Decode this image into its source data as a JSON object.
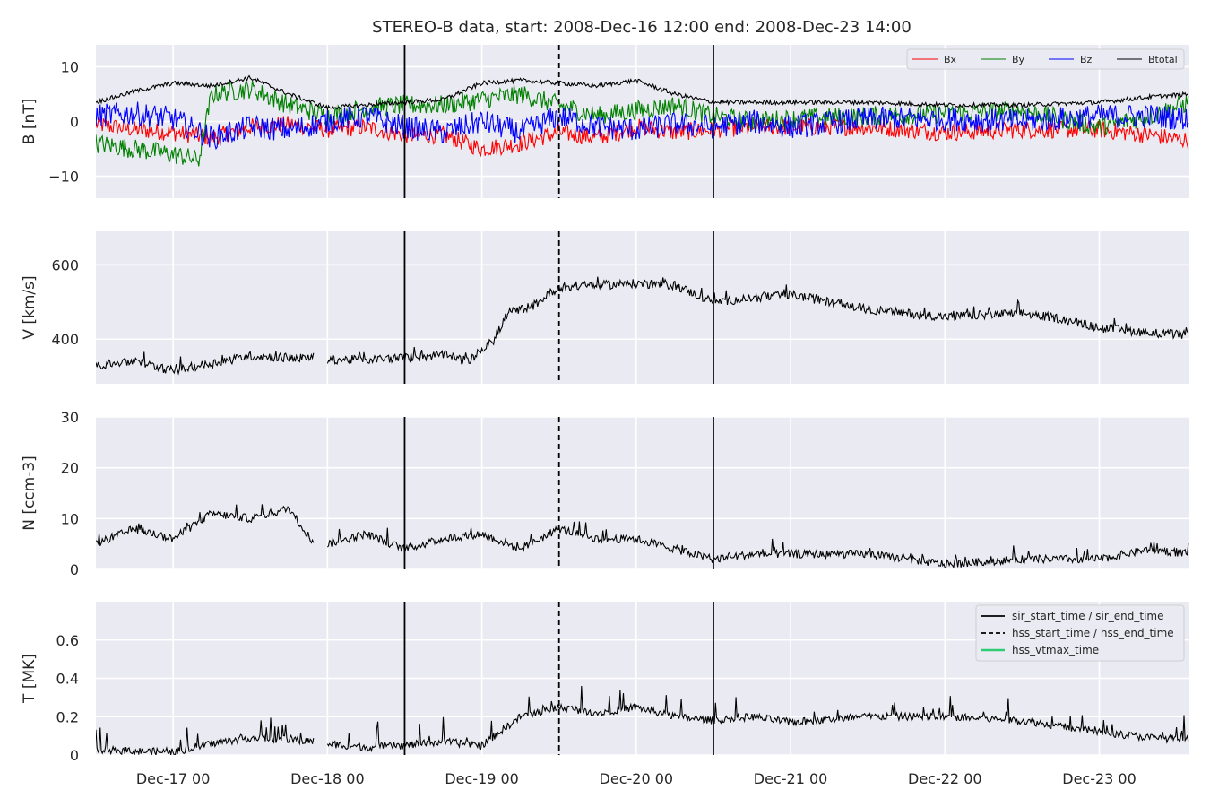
{
  "title": "STEREO-B data, start: 2008-Dec-16 12:00  end: 2008-Dec-23 14:00",
  "colors": {
    "background": "#eaeaf2",
    "grid": "#ffffff",
    "bx": "#ff0000",
    "by": "#008000",
    "bz": "#0000ff",
    "btotal": "#000000",
    "vtmax": "#2ecc71"
  },
  "x_axis": {
    "start": "2008-12-16 12:00",
    "end": "2008-12-23 14:00",
    "tick_dates": [
      "2008-12-17 00:00",
      "2008-12-18 00:00",
      "2008-12-19 00:00",
      "2008-12-20 00:00",
      "2008-12-21 00:00",
      "2008-12-22 00:00",
      "2008-12-23 00:00"
    ],
    "tick_labels": [
      "Dec-17 00",
      "Dec-18 00",
      "Dec-19 00",
      "Dec-20 00",
      "Dec-21 00",
      "Dec-22 00",
      "Dec-23 00"
    ]
  },
  "events": {
    "sir_start_time": "2008-12-18 12:00",
    "hss_start_time": "2008-12-19 12:00",
    "sir_end_time": "2008-12-20 12:00"
  },
  "chart_data": [
    {
      "type": "line",
      "ylabel": "B [nT]",
      "ylim": [
        -14,
        14
      ],
      "yticks": [
        -10,
        0,
        10
      ],
      "grid": true,
      "legend": "top-right",
      "series": [
        {
          "name": "Bx",
          "color": "#ff0000",
          "x": [
            "2008-12-16 12:00",
            "2008-12-16 18:00",
            "2008-12-17 00:00",
            "2008-12-17 06:00",
            "2008-12-17 12:00",
            "2008-12-17 18:00",
            "2008-12-18 00:00",
            "2008-12-18 06:00",
            "2008-12-18 12:00",
            "2008-12-18 18:00",
            "2008-12-19 00:00",
            "2008-12-19 06:00",
            "2008-12-19 12:00",
            "2008-12-19 18:00",
            "2008-12-20 00:00",
            "2008-12-20 06:00",
            "2008-12-20 12:00",
            "2008-12-20 18:00",
            "2008-12-21 00:00",
            "2008-12-21 12:00",
            "2008-12-22 00:00",
            "2008-12-22 12:00",
            "2008-12-23 00:00",
            "2008-12-23 08:00",
            "2008-12-23 14:00"
          ],
          "y": [
            -0.5,
            -1.5,
            -2,
            -3,
            -1,
            -0.5,
            -1.5,
            -1,
            -2.5,
            -2.5,
            -5,
            -4,
            -2,
            -3,
            -1,
            -2,
            -1.5,
            -1,
            -1,
            -1,
            -2,
            -1.5,
            -1.5,
            -2.5,
            -3.5
          ]
        },
        {
          "name": "By",
          "color": "#008000",
          "x": [
            "2008-12-16 12:00",
            "2008-12-16 18:00",
            "2008-12-17 00:00",
            "2008-12-17 04:00",
            "2008-12-17 06:00",
            "2008-12-17 12:00",
            "2008-12-17 18:00",
            "2008-12-18 00:00",
            "2008-12-18 06:00",
            "2008-12-18 12:00",
            "2008-12-18 18:00",
            "2008-12-19 00:00",
            "2008-12-19 06:00",
            "2008-12-19 12:00",
            "2008-12-19 18:00",
            "2008-12-20 00:00",
            "2008-12-20 06:00",
            "2008-12-20 12:00",
            "2008-12-20 18:00",
            "2008-12-21 00:00",
            "2008-12-21 12:00",
            "2008-12-22 00:00",
            "2008-12-22 12:00",
            "2008-12-23 00:00",
            "2008-12-23 08:00",
            "2008-12-23 14:00"
          ],
          "y": [
            -4,
            -5,
            -6,
            -7,
            5,
            6,
            3,
            1,
            2.5,
            3,
            3,
            4,
            5,
            3,
            1,
            2,
            3,
            1,
            0,
            0.5,
            1,
            1.5,
            2,
            -1,
            1,
            3.5
          ]
        },
        {
          "name": "Bz",
          "color": "#0000ff",
          "x": [
            "2008-12-16 12:00",
            "2008-12-16 18:00",
            "2008-12-17 00:00",
            "2008-12-17 06:00",
            "2008-12-17 12:00",
            "2008-12-17 18:00",
            "2008-12-18 00:00",
            "2008-12-18 06:00",
            "2008-12-18 12:00",
            "2008-12-18 18:00",
            "2008-12-19 00:00",
            "2008-12-19 06:00",
            "2008-12-19 12:00",
            "2008-12-19 18:00",
            "2008-12-20 00:00",
            "2008-12-20 06:00",
            "2008-12-20 12:00",
            "2008-12-20 18:00",
            "2008-12-21 00:00",
            "2008-12-21 12:00",
            "2008-12-22 00:00",
            "2008-12-22 12:00",
            "2008-12-23 00:00",
            "2008-12-23 08:00",
            "2008-12-23 14:00"
          ],
          "y": [
            1,
            1.5,
            0.5,
            -3,
            -1,
            -1.5,
            0,
            1,
            -1,
            -2,
            0,
            -2,
            1,
            -1,
            -1.5,
            -0.5,
            -1,
            0,
            -1,
            0.5,
            0.5,
            0,
            1,
            1,
            0.5
          ]
        },
        {
          "name": "Btotal",
          "color": "#000000",
          "x": [
            "2008-12-16 12:00",
            "2008-12-16 18:00",
            "2008-12-17 00:00",
            "2008-12-17 06:00",
            "2008-12-17 12:00",
            "2008-12-17 18:00",
            "2008-12-18 00:00",
            "2008-12-18 06:00",
            "2008-12-18 12:00",
            "2008-12-18 18:00",
            "2008-12-19 00:00",
            "2008-12-19 06:00",
            "2008-12-19 12:00",
            "2008-12-19 18:00",
            "2008-12-20 00:00",
            "2008-12-20 06:00",
            "2008-12-20 12:00",
            "2008-12-20 18:00",
            "2008-12-21 00:00",
            "2008-12-21 12:00",
            "2008-12-22 00:00",
            "2008-12-22 12:00",
            "2008-12-23 00:00",
            "2008-12-23 08:00",
            "2008-12-23 14:00"
          ],
          "y": [
            3.5,
            5.5,
            7,
            6.5,
            8,
            5,
            2.5,
            3,
            3.5,
            4,
            7,
            7.5,
            7,
            6.5,
            7.5,
            5,
            3.5,
            3.5,
            3.5,
            3.5,
            3,
            3,
            3.5,
            4.5,
            5
          ]
        }
      ]
    },
    {
      "type": "line",
      "ylabel": "V [km/s]",
      "ylim": [
        280,
        690
      ],
      "yticks": [
        400,
        600
      ],
      "grid": true,
      "series": [
        {
          "color": "#000000",
          "x": [
            "2008-12-16 12:00",
            "2008-12-16 18:00",
            "2008-12-17 00:00",
            "2008-12-17 06:00",
            "2008-12-17 12:00",
            "2008-12-17 18:00",
            "2008-12-17 22:00",
            null,
            "2008-12-18 00:00",
            "2008-12-18 06:00",
            "2008-12-18 12:00",
            "2008-12-18 18:00",
            "2008-12-18 22:00",
            "2008-12-19 02:00",
            "2008-12-19 04:00",
            "2008-12-19 08:00",
            "2008-12-19 12:00",
            "2008-12-19 18:00",
            "2008-12-20 00:00",
            "2008-12-20 06:00",
            "2008-12-20 12:00",
            "2008-12-20 18:00",
            "2008-12-21 00:00",
            "2008-12-21 06:00",
            "2008-12-21 12:00",
            "2008-12-21 18:00",
            "2008-12-22 00:00",
            "2008-12-22 06:00",
            "2008-12-22 12:00",
            "2008-12-22 18:00",
            "2008-12-23 00:00",
            "2008-12-23 06:00",
            "2008-12-23 14:00"
          ],
          "y": [
            330,
            340,
            315,
            335,
            355,
            350,
            348,
            null,
            345,
            345,
            350,
            358,
            340,
            400,
            470,
            490,
            540,
            545,
            550,
            545,
            500,
            510,
            520,
            500,
            480,
            470,
            460,
            465,
            470,
            455,
            430,
            420,
            410
          ]
        }
      ]
    },
    {
      "type": "line",
      "ylabel": "N [ccm-3]",
      "ylim": [
        0,
        30
      ],
      "yticks": [
        0,
        10,
        20,
        30
      ],
      "grid": true,
      "series": [
        {
          "color": "#000000",
          "x": [
            "2008-12-16 12:00",
            "2008-12-16 18:00",
            "2008-12-17 00:00",
            "2008-12-17 06:00",
            "2008-12-17 12:00",
            "2008-12-17 18:00",
            "2008-12-17 22:00",
            null,
            "2008-12-18 00:00",
            "2008-12-18 06:00",
            "2008-12-18 12:00",
            "2008-12-18 18:00",
            "2008-12-19 00:00",
            "2008-12-19 06:00",
            "2008-12-19 12:00",
            "2008-12-19 18:00",
            "2008-12-20 00:00",
            "2008-12-20 06:00",
            "2008-12-20 12:00",
            "2008-12-20 18:00",
            "2008-12-21 00:00",
            "2008-12-21 12:00",
            "2008-12-21 18:00",
            "2008-12-22 00:00",
            "2008-12-22 12:00",
            "2008-12-23 00:00",
            "2008-12-23 08:00",
            "2008-12-23 14:00"
          ],
          "y": [
            5,
            8,
            6,
            11,
            10,
            12,
            5,
            null,
            5,
            7,
            4,
            6,
            7,
            4,
            8,
            6,
            6,
            4,
            2,
            3,
            3,
            3,
            2,
            1,
            2,
            2,
            4,
            3
          ]
        }
      ]
    },
    {
      "type": "line",
      "ylabel": "T [MK]",
      "ylim": [
        0,
        0.8
      ],
      "yticks": [
        0.0,
        0.2,
        0.4,
        0.6
      ],
      "grid": true,
      "legend": "top-right",
      "series": [
        {
          "color": "#000000",
          "x": [
            "2008-12-16 12:00",
            "2008-12-16 18:00",
            "2008-12-17 00:00",
            "2008-12-17 06:00",
            "2008-12-17 12:00",
            "2008-12-17 18:00",
            "2008-12-17 22:00",
            null,
            "2008-12-18 00:00",
            "2008-12-18 06:00",
            "2008-12-18 12:00",
            "2008-12-18 18:00",
            "2008-12-19 00:00",
            "2008-12-19 06:00",
            "2008-12-19 12:00",
            "2008-12-19 18:00",
            "2008-12-20 00:00",
            "2008-12-20 06:00",
            "2008-12-20 12:00",
            "2008-12-20 18:00",
            "2008-12-21 00:00",
            "2008-12-21 12:00",
            "2008-12-22 00:00",
            "2008-12-22 12:00",
            "2008-12-23 00:00",
            "2008-12-23 08:00",
            "2008-12-23 14:00"
          ],
          "y": [
            0.03,
            0.02,
            0.015,
            0.06,
            0.09,
            0.08,
            0.07,
            null,
            0.06,
            0.04,
            0.05,
            0.07,
            0.05,
            0.2,
            0.25,
            0.22,
            0.25,
            0.2,
            0.18,
            0.2,
            0.17,
            0.2,
            0.2,
            0.18,
            0.12,
            0.09,
            0.08
          ]
        }
      ],
      "legend_entries": [
        {
          "label": "sir_start_time / sir_end_time",
          "style": "solid",
          "color": "#000000"
        },
        {
          "label": "hss_start_time / hss_end_time",
          "style": "dashed",
          "color": "#000000"
        },
        {
          "label": "hss_vtmax_time",
          "style": "solid",
          "color": "#2ecc71"
        }
      ]
    }
  ]
}
